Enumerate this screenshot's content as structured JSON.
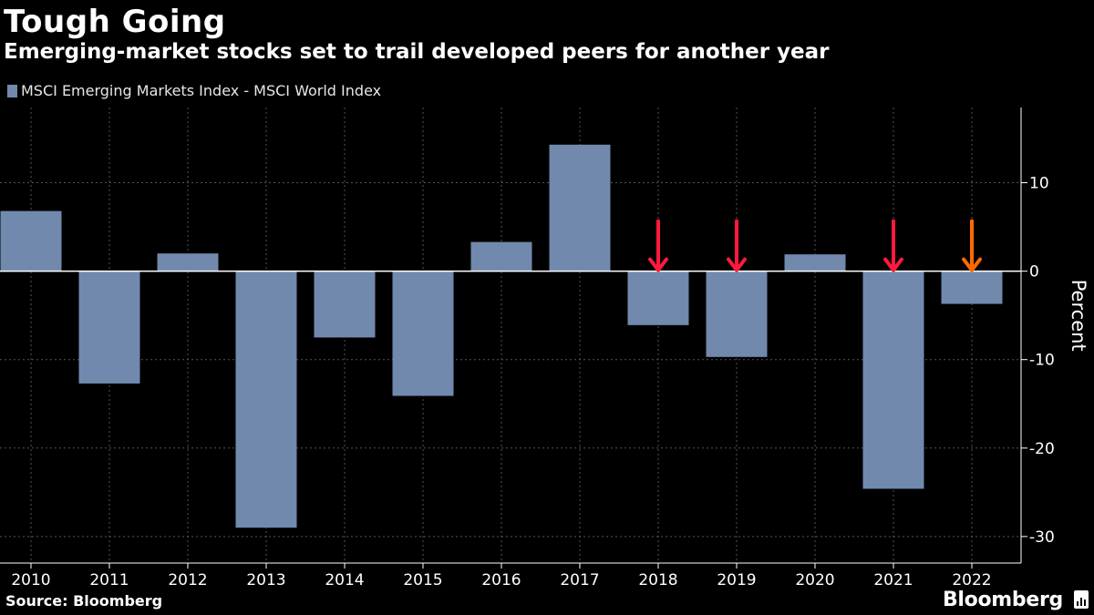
{
  "header": {
    "title": "Tough Going",
    "subtitle": "Emerging-market stocks set to trail developed peers for another year"
  },
  "legend": {
    "label": "MSCI Emerging Markets Index - MSCI World Index",
    "color": "#7189ad"
  },
  "footer": {
    "source": "Source: Bloomberg",
    "brand": "Bloomberg"
  },
  "colors": {
    "bar": "#7189ad",
    "grid": "#555555",
    "axis": "#ffffff",
    "arrow_red": "#ff1a3c",
    "arrow_orange": "#ff6a00"
  },
  "chart_data": {
    "type": "bar",
    "title": "Tough Going",
    "subtitle": "Emerging-market stocks set to trail developed peers for another year",
    "xlabel": "",
    "ylabel": "Percent",
    "categories": [
      "2010",
      "2011",
      "2012",
      "2013",
      "2014",
      "2015",
      "2016",
      "2017",
      "2018",
      "2019",
      "2020",
      "2021",
      "2022"
    ],
    "series": [
      {
        "name": "MSCI Emerging Markets Index - MSCI World Index",
        "values": [
          6.8,
          -12.7,
          2.0,
          -29.0,
          -7.5,
          -14.1,
          3.3,
          14.3,
          -6.1,
          -9.7,
          1.9,
          -24.6,
          -3.7
        ]
      }
    ],
    "ylim": [
      -33,
      18.5
    ],
    "yticks": [
      10,
      0,
      -10,
      -20,
      -30
    ],
    "ytick_labels": [
      "10",
      "0",
      "-10",
      "-20",
      "-30"
    ],
    "grid": true,
    "legend_position": "top-left",
    "annotations": [
      {
        "category": "2018",
        "type": "down-arrow",
        "color": "red"
      },
      {
        "category": "2019",
        "type": "down-arrow",
        "color": "red"
      },
      {
        "category": "2021",
        "type": "down-arrow",
        "color": "red"
      },
      {
        "category": "2022",
        "type": "down-arrow",
        "color": "orange"
      }
    ]
  }
}
